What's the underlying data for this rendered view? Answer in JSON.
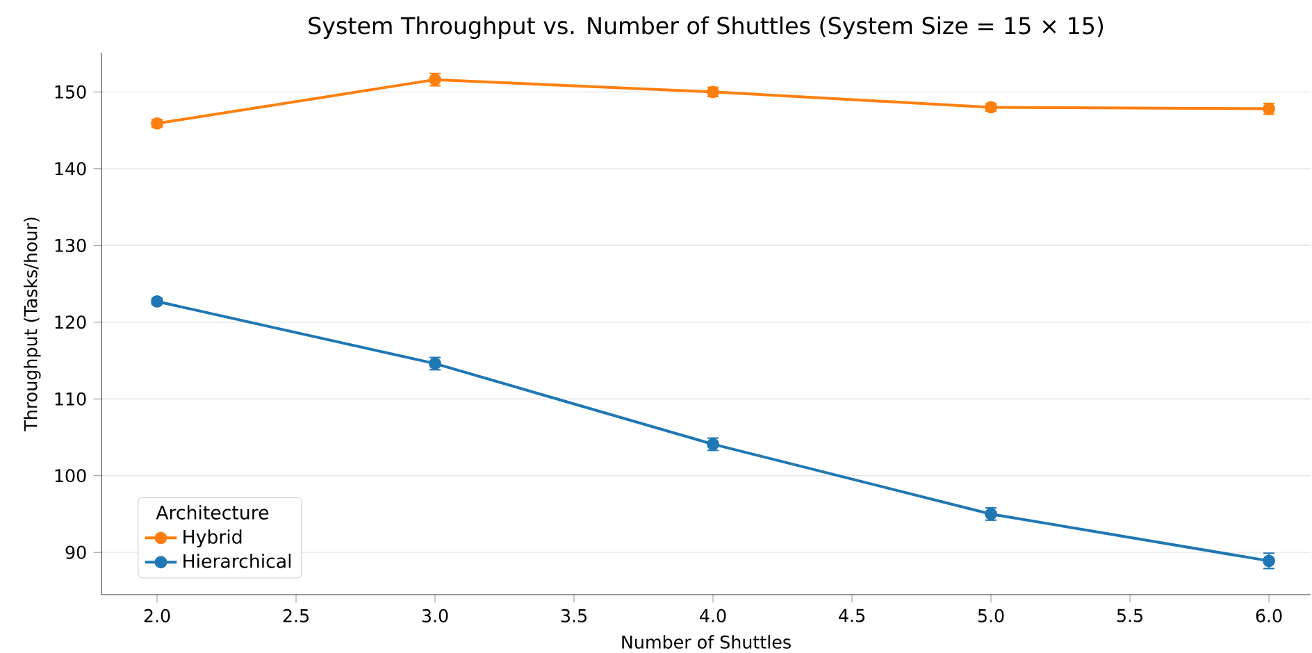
{
  "chart_data": {
    "type": "line",
    "title": "System Throughput vs. Number of Shuttles (System Size = 15 × 15)",
    "xlabel": "Number of Shuttles",
    "ylabel": "Throughput (Tasks/hour)",
    "legend_title": "Architecture",
    "x": [
      2,
      3,
      4,
      5,
      6
    ],
    "series": [
      {
        "name": "Hybrid",
        "color": "#ff7f0e",
        "values": [
          145.9,
          151.6,
          150.0,
          148.0,
          147.8
        ],
        "errors": [
          0.5,
          0.8,
          0.6,
          0.5,
          0.7
        ]
      },
      {
        "name": "Hierarchical",
        "color": "#1f77b4",
        "values": [
          122.7,
          114.6,
          104.1,
          95.0,
          88.9
        ],
        "errors": [
          0.4,
          0.8,
          0.8,
          0.8,
          1.0
        ]
      }
    ],
    "xlim": [
      1.8,
      6.15
    ],
    "ylim": [
      84.5,
      155.1
    ],
    "xticks": [
      {
        "value": 2,
        "label": "2.0"
      },
      {
        "value": 2.5,
        "label": "2.5"
      },
      {
        "value": 3,
        "label": "3.0"
      },
      {
        "value": 3.5,
        "label": "3.5"
      },
      {
        "value": 4,
        "label": "4.0"
      },
      {
        "value": 4.5,
        "label": "4.5"
      },
      {
        "value": 5,
        "label": "5.0"
      },
      {
        "value": 5.5,
        "label": "5.5"
      },
      {
        "value": 6,
        "label": "6.0"
      }
    ],
    "yticks": [
      90,
      100,
      110,
      120,
      130,
      140,
      150
    ],
    "grid": "y",
    "legend": "bottom left",
    "marker": "circle",
    "line_style": "solid"
  }
}
